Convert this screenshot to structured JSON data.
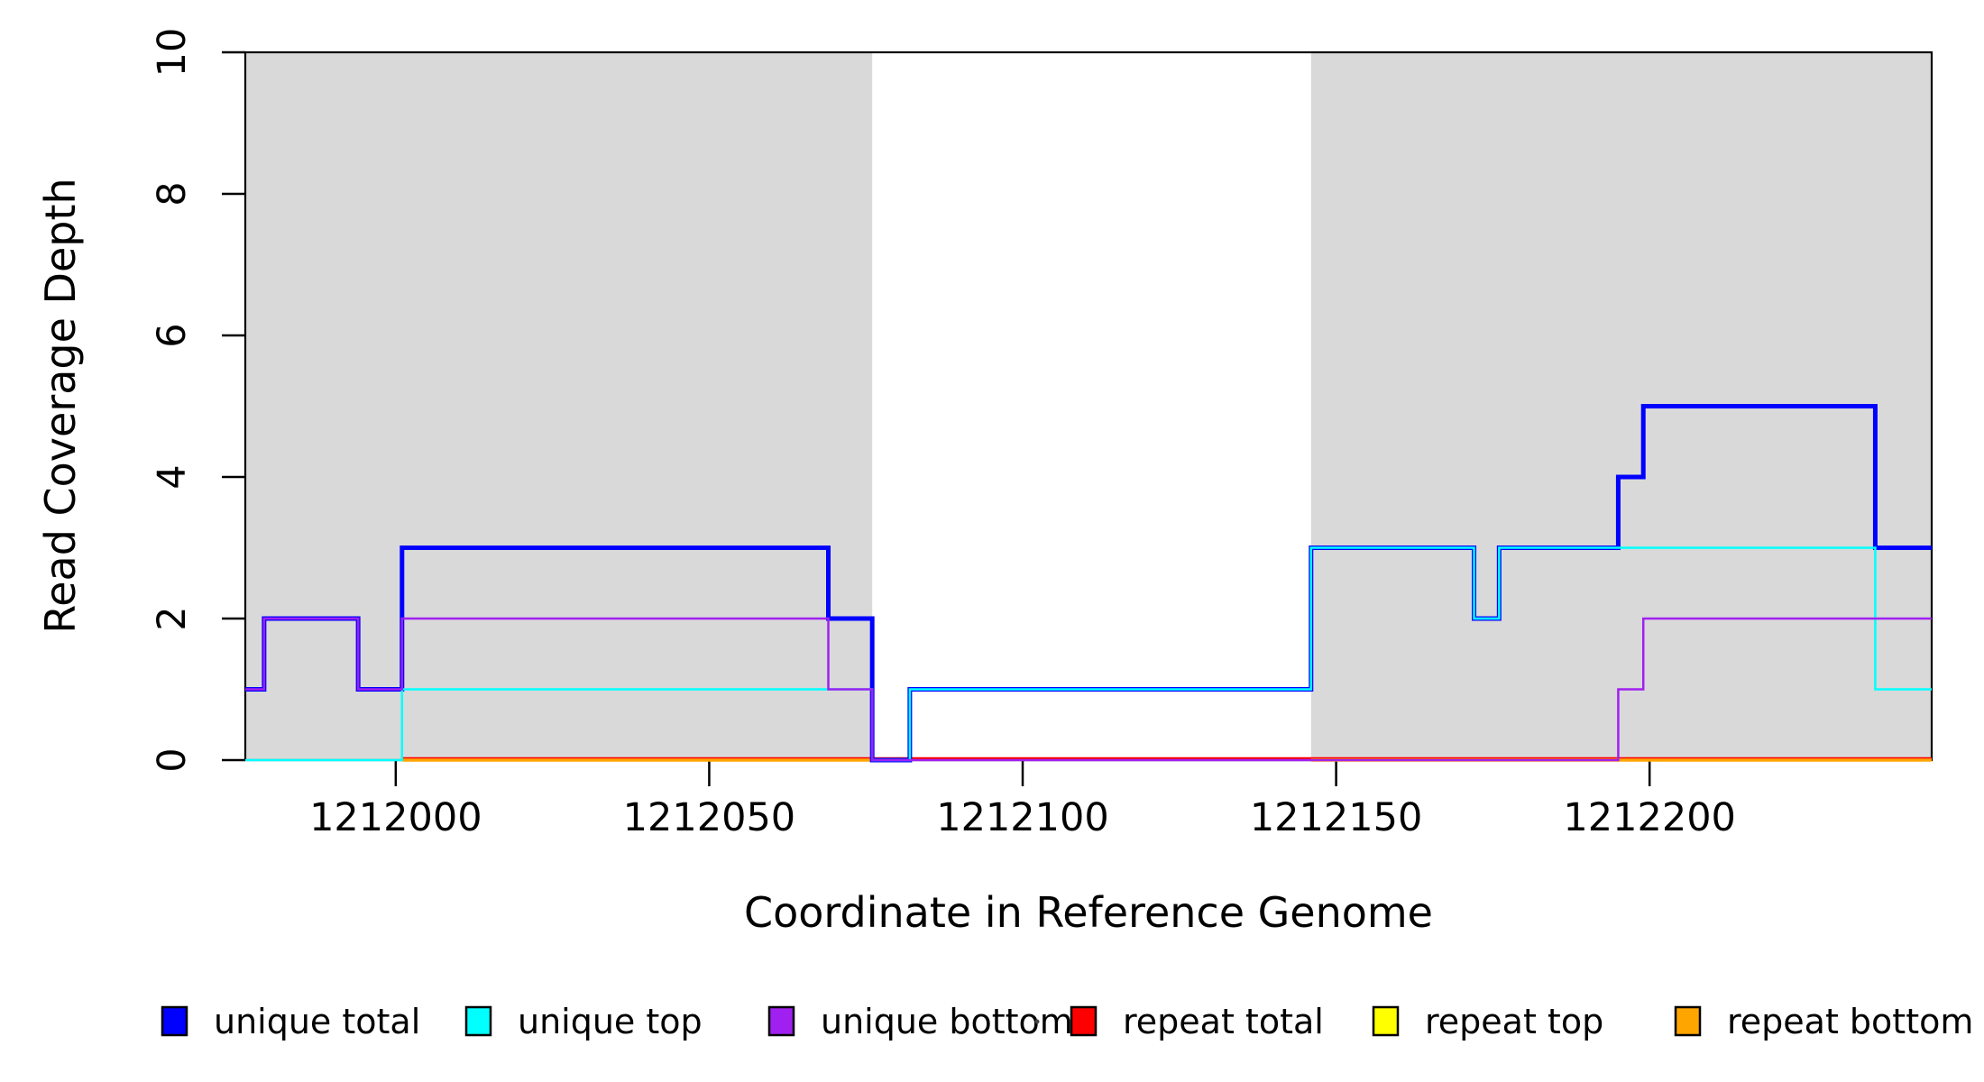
{
  "chart_data": {
    "type": "line",
    "step": true,
    "title": "",
    "xlabel": "Coordinate in Reference Genome",
    "ylabel": "Read Coverage Depth",
    "xlim": [
      1211976,
      1212245
    ],
    "ylim": [
      0,
      10
    ],
    "x_ticks": [
      "1212000",
      "1212050",
      "1212100",
      "1212150",
      "1212200"
    ],
    "x_tick_values": [
      1212000,
      1212050,
      1212100,
      1212150,
      1212200
    ],
    "y_ticks": [
      "0",
      "2",
      "4",
      "6",
      "8",
      "10"
    ],
    "y_tick_values": [
      0,
      2,
      4,
      6,
      8,
      10
    ],
    "grid": false,
    "plot_background": "#FFFFFF",
    "shading": {
      "color": "#D9D9D9",
      "regions": [
        {
          "from": 1211976,
          "to": 1212076
        },
        {
          "from": 1212146,
          "to": 1212245
        }
      ]
    },
    "series": [
      {
        "name": "unique total",
        "color": "#0000FF",
        "lwd": 5,
        "dy": 0,
        "segments": [
          [
            [
              1211976,
              1
            ],
            [
              1211979,
              2
            ],
            [
              1211994,
              1
            ],
            [
              1212001,
              3
            ],
            [
              1212069,
              2
            ],
            [
              1212076,
              0
            ],
            [
              1212082,
              1
            ],
            [
              1212146,
              3
            ],
            [
              1212172,
              2
            ],
            [
              1212176,
              3
            ],
            [
              1212195,
              4
            ],
            [
              1212199,
              5
            ],
            [
              1212236,
              3
            ],
            [
              1212245,
              3
            ]
          ]
        ]
      },
      {
        "name": "unique top",
        "color": "#00FFFF",
        "lwd": 2.5,
        "dy": 0,
        "segments": [
          [
            [
              1211976,
              0
            ],
            [
              1212001,
              1
            ],
            [
              1212076,
              0
            ],
            [
              1212082,
              1
            ],
            [
              1212146,
              3
            ],
            [
              1212172,
              2
            ],
            [
              1212176,
              3
            ],
            [
              1212236,
              1
            ],
            [
              1212245,
              1
            ]
          ]
        ]
      },
      {
        "name": "unique bottom",
        "color": "#A020F0",
        "lwd": 2.5,
        "dy": 0,
        "segments": [
          [
            [
              1211976,
              1
            ],
            [
              1211979,
              2
            ],
            [
              1211994,
              1
            ],
            [
              1212001,
              2
            ],
            [
              1212069,
              1
            ],
            [
              1212076,
              0
            ],
            [
              1212195,
              1
            ],
            [
              1212199,
              2
            ],
            [
              1212245,
              2
            ]
          ]
        ]
      },
      {
        "name": "repeat total",
        "color": "#FF0000",
        "lwd": 2.5,
        "dy": -2,
        "segments": [
          [
            [
              1212001,
              0
            ],
            [
              1212245,
              0
            ]
          ]
        ]
      },
      {
        "name": "repeat top",
        "color": "#FFFF00",
        "lwd": 2.5,
        "dy": 0,
        "segments": [
          [
            [
              1212001,
              0
            ],
            [
              1212076,
              0
            ]
          ],
          [
            [
              1212146,
              0
            ],
            [
              1212245,
              0
            ]
          ]
        ]
      },
      {
        "name": "repeat bottom",
        "color": "#FFA500",
        "lwd": 3.5,
        "dy": 0,
        "segments": [
          [
            [
              1212001,
              0
            ],
            [
              1212076,
              0
            ]
          ],
          [
            [
              1212146,
              0
            ],
            [
              1212245,
              0
            ]
          ]
        ]
      }
    ],
    "legend": {
      "position": "bottom",
      "entries": [
        {
          "label": "unique total",
          "color": "#0000FF"
        },
        {
          "label": "unique top",
          "color": "#00FFFF"
        },
        {
          "label": "unique bottom",
          "color": "#A020F0"
        },
        {
          "label": "repeat total",
          "color": "#FF0000"
        },
        {
          "label": "repeat top",
          "color": "#FFFF00"
        },
        {
          "label": "repeat bottom",
          "color": "#FFA500"
        }
      ]
    }
  }
}
